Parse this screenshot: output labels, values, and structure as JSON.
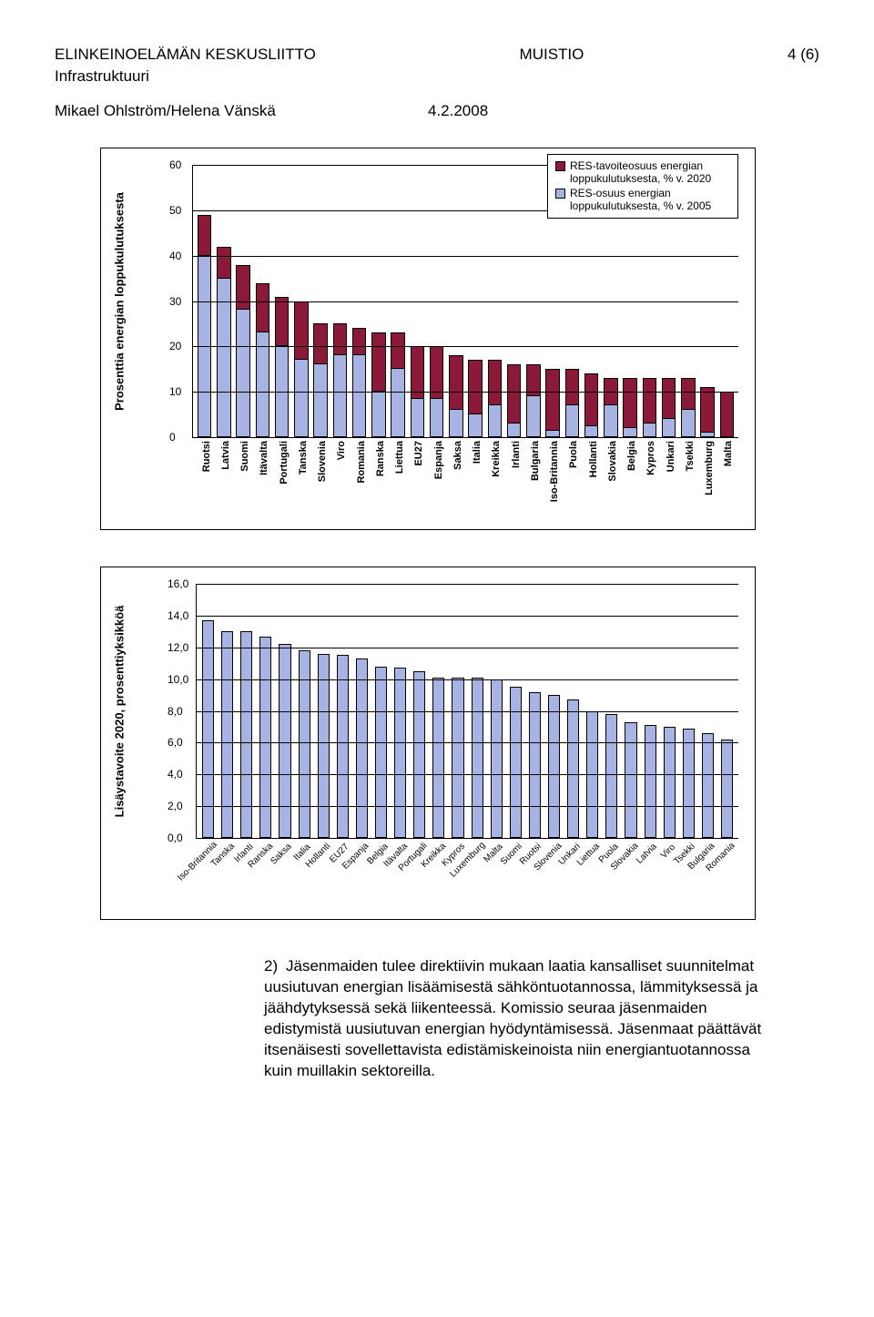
{
  "header": {
    "org": "ELINKEINOELÄMÄN KESKUSLIITTO",
    "doc_type": "MUISTIO",
    "page_no": "4 (6)",
    "subtitle": "Infrastruktuuri",
    "author": "Mikael Ohlström/Helena Vänskä",
    "date": "4.2.2008"
  },
  "chart1": {
    "type": "stacked-bar",
    "ylabel": "Prosenttia energian loppukulutuksesta",
    "ylim": [
      0,
      60
    ],
    "ytick_step": 10,
    "legend": [
      {
        "label": "RES-tavoiteosuus energian loppukulutuksesta, % v. 2020",
        "color": "#8b1a3a"
      },
      {
        "label": "RES-osuus energian loppukulutuksesta, % v. 2005",
        "color": "#a7b3e3"
      }
    ],
    "segment_color_top": "#8b1a3a",
    "segment_color_bot": "#a7b3e3",
    "background": "#ffffff",
    "grid_color": "#000000",
    "items": [
      {
        "label": "Ruotsi",
        "v2005": 40,
        "v2020": 49
      },
      {
        "label": "Latvia",
        "v2005": 35,
        "v2020": 42
      },
      {
        "label": "Suomi",
        "v2005": 28,
        "v2020": 38
      },
      {
        "label": "Itävalta",
        "v2005": 23,
        "v2020": 34
      },
      {
        "label": "Portugali",
        "v2005": 20,
        "v2020": 31
      },
      {
        "label": "Tanska",
        "v2005": 17,
        "v2020": 30
      },
      {
        "label": "Slovenia",
        "v2005": 16,
        "v2020": 25
      },
      {
        "label": "Viro",
        "v2005": 18,
        "v2020": 25
      },
      {
        "label": "Romania",
        "v2005": 18,
        "v2020": 24
      },
      {
        "label": "Ranska",
        "v2005": 10,
        "v2020": 23
      },
      {
        "label": "Liettua",
        "v2005": 15,
        "v2020": 23
      },
      {
        "label": "EU27",
        "v2005": 8.5,
        "v2020": 20
      },
      {
        "label": "Espanja",
        "v2005": 8.5,
        "v2020": 20
      },
      {
        "label": "Saksa",
        "v2005": 6,
        "v2020": 18
      },
      {
        "label": "Italia",
        "v2005": 5,
        "v2020": 17
      },
      {
        "label": "Kreikka",
        "v2005": 7,
        "v2020": 17
      },
      {
        "label": "Irlanti",
        "v2005": 3,
        "v2020": 16
      },
      {
        "label": "Bulgaria",
        "v2005": 9,
        "v2020": 16
      },
      {
        "label": "Iso-Britannia",
        "v2005": 1.5,
        "v2020": 15
      },
      {
        "label": "Puola",
        "v2005": 7,
        "v2020": 15
      },
      {
        "label": "Hollanti",
        "v2005": 2.5,
        "v2020": 14
      },
      {
        "label": "Slovakia",
        "v2005": 7,
        "v2020": 13
      },
      {
        "label": "Belgia",
        "v2005": 2,
        "v2020": 13
      },
      {
        "label": "Kypros",
        "v2005": 3,
        "v2020": 13
      },
      {
        "label": "Unkari",
        "v2005": 4,
        "v2020": 13
      },
      {
        "label": "Tsekki",
        "v2005": 6,
        "v2020": 13
      },
      {
        "label": "Luxemburg",
        "v2005": 1,
        "v2020": 11
      },
      {
        "label": "Malta",
        "v2005": 0,
        "v2020": 10
      }
    ]
  },
  "chart2": {
    "type": "bar",
    "ylabel": "Lisäystavoite 2020, prosenttiyksikköä",
    "ylim": [
      0,
      16
    ],
    "ytick_step": 2,
    "bar_color": "#a7b3e3",
    "background": "#ffffff",
    "grid_color": "#000000",
    "items": [
      {
        "label": "Iso-Britannia",
        "value": 13.7
      },
      {
        "label": "Tanska",
        "value": 13.0
      },
      {
        "label": "Irlanti",
        "value": 13.0
      },
      {
        "label": "Ranska",
        "value": 12.7
      },
      {
        "label": "Saksa",
        "value": 12.2
      },
      {
        "label": "Italia",
        "value": 11.8
      },
      {
        "label": "Hollanti",
        "value": 11.6
      },
      {
        "label": "EU27",
        "value": 11.5
      },
      {
        "label": "Espanja",
        "value": 11.3
      },
      {
        "label": "Belgia",
        "value": 10.8
      },
      {
        "label": "Itävalta",
        "value": 10.7
      },
      {
        "label": "Portugali",
        "value": 10.5
      },
      {
        "label": "Kreikka",
        "value": 10.1
      },
      {
        "label": "Kypros",
        "value": 10.1
      },
      {
        "label": "Luxemburg",
        "value": 10.1
      },
      {
        "label": "Malta",
        "value": 10.0
      },
      {
        "label": "Suomi",
        "value": 9.5
      },
      {
        "label": "Ruotsi",
        "value": 9.2
      },
      {
        "label": "Slovenia",
        "value": 9.0
      },
      {
        "label": "Unkari",
        "value": 8.7
      },
      {
        "label": "Liettua",
        "value": 8.0
      },
      {
        "label": "Puola",
        "value": 7.8
      },
      {
        "label": "Slovakia",
        "value": 7.3
      },
      {
        "label": "Latvia",
        "value": 7.1
      },
      {
        "label": "Viro",
        "value": 7.0
      },
      {
        "label": "Tsekki",
        "value": 6.9
      },
      {
        "label": "Bulgaria",
        "value": 6.6
      },
      {
        "label": "Romania",
        "value": 6.2
      }
    ]
  },
  "body": {
    "num": "2)",
    "text": "Jäsenmaiden tulee direktiivin mukaan laatia kansalliset suunnitelmat uusiutuvan energian lisäämisestä sähköntuotannossa, lämmityksessä ja jäähdytyksessä sekä liikenteessä. Komissio seuraa jäsenmaiden edistymistä uusiutuvan energian hyödyntämisessä. Jäsenmaat päättävät itsenäisesti sovellettavista edistämiskeinoista niin energiantuotannossa kuin muillakin sektoreilla."
  }
}
